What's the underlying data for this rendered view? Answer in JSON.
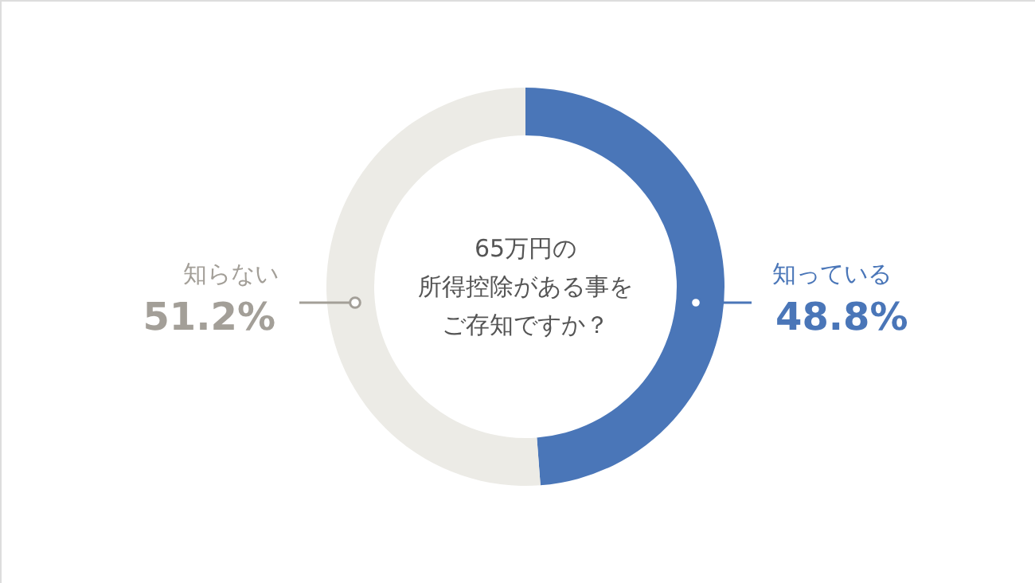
{
  "chart_data": {
    "type": "donut",
    "title": "65万円の所得控除がある事をご存知ですか？",
    "categories": [
      "知っている",
      "知らない"
    ],
    "values": [
      48.8,
      51.2
    ],
    "colors": [
      "#4a76b8",
      "#ecebe6"
    ],
    "value_labels": [
      "48.8%",
      "51.2%"
    ]
  }
}
